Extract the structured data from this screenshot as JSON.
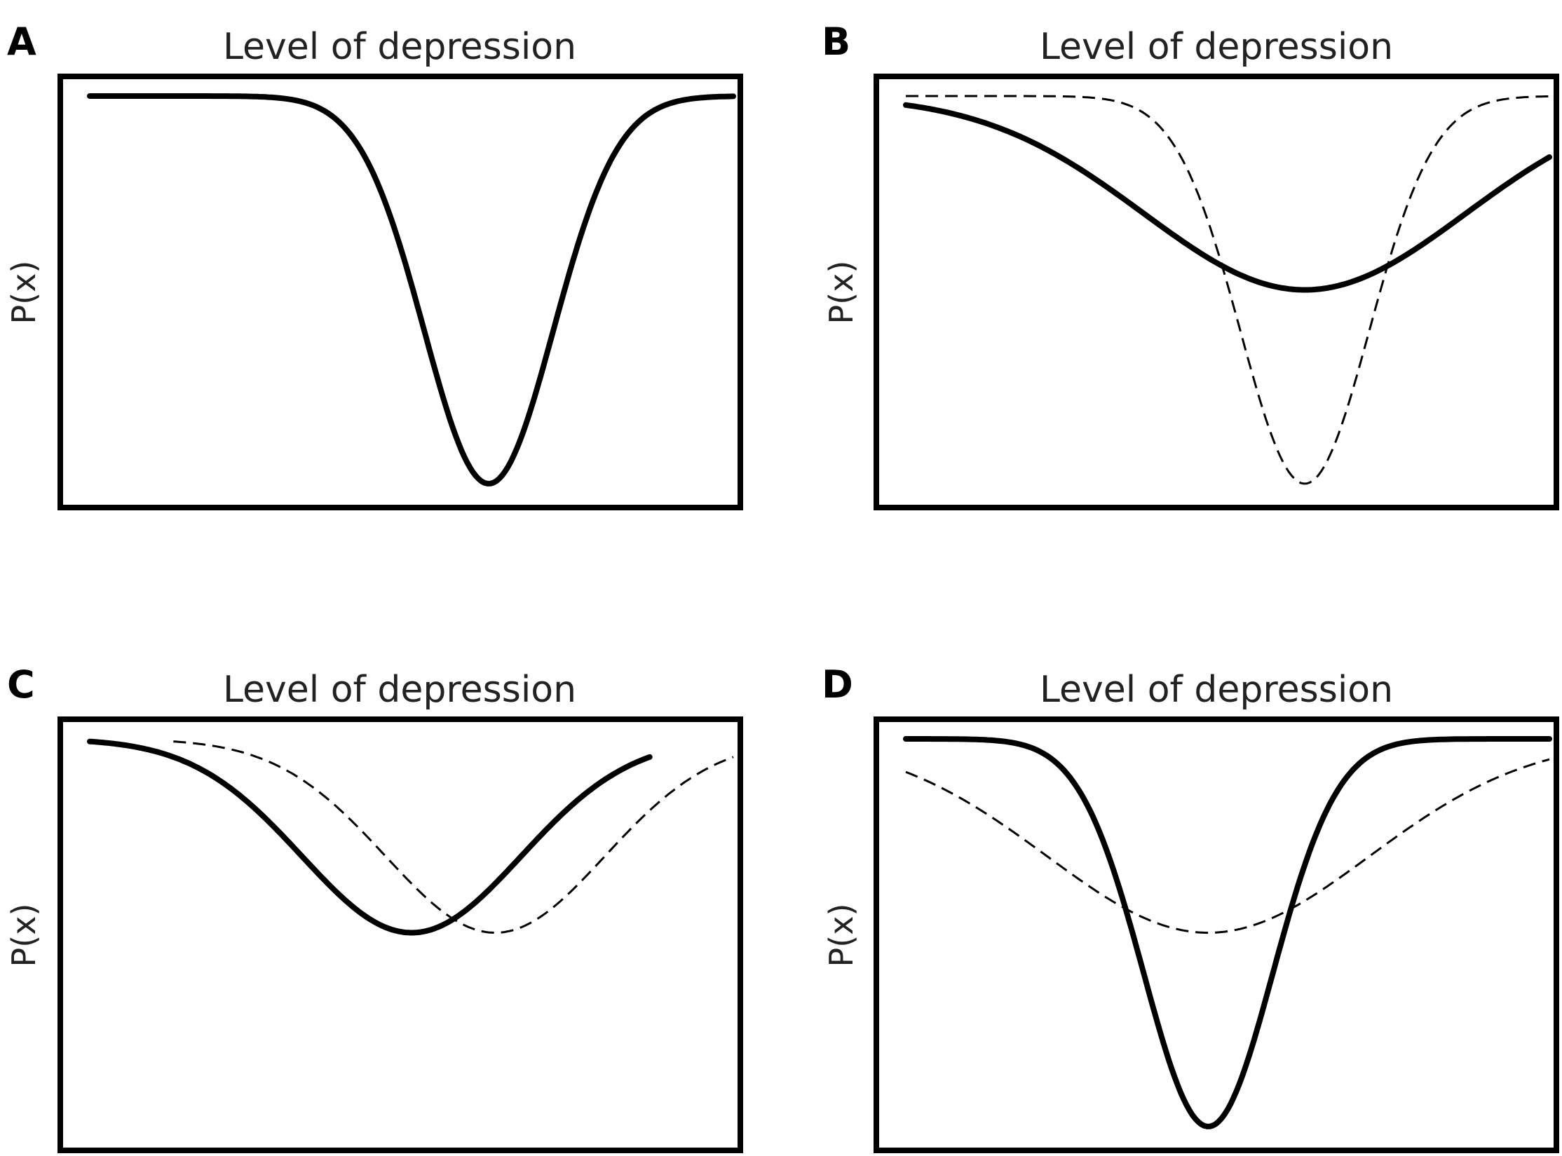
{
  "chart_data": [
    {
      "panel": "A",
      "type": "line",
      "title": "Level of depression",
      "ylabel": "P(x)",
      "series": [
        {
          "style": "solid",
          "mu": 0.62,
          "sigma": 0.1,
          "depth": 1.0,
          "x_end": 1.0
        }
      ]
    },
    {
      "panel": "B",
      "type": "line",
      "title": "Level of depression",
      "ylabel": "P(x)",
      "series": [
        {
          "style": "dashed",
          "mu": 0.62,
          "sigma": 0.1,
          "depth": 1.0,
          "x_end": 1.0
        },
        {
          "style": "solid",
          "mu": 0.62,
          "sigma": 0.25,
          "depth": 0.5,
          "x_end": 1.0
        }
      ]
    },
    {
      "panel": "C",
      "type": "line",
      "title": "Level of depression",
      "ylabel": "P(x)",
      "series": [
        {
          "style": "dashed",
          "mu": 0.63,
          "sigma": 0.17,
          "depth": 0.5,
          "x_start": 0.13,
          "x_end": 1.0
        },
        {
          "style": "solid",
          "mu": 0.5,
          "sigma": 0.17,
          "depth": 0.5,
          "x_start": 0.0,
          "x_end": 0.87
        }
      ]
    },
    {
      "panel": "D",
      "type": "line",
      "title": "Level of depression",
      "ylabel": "P(x)",
      "series": [
        {
          "style": "dashed",
          "mu": 0.47,
          "sigma": 0.25,
          "depth": 0.5,
          "x_end": 1.0
        },
        {
          "style": "solid",
          "mu": 0.47,
          "sigma": 0.1,
          "depth": 1.0,
          "x_end": 1.0
        }
      ]
    }
  ]
}
